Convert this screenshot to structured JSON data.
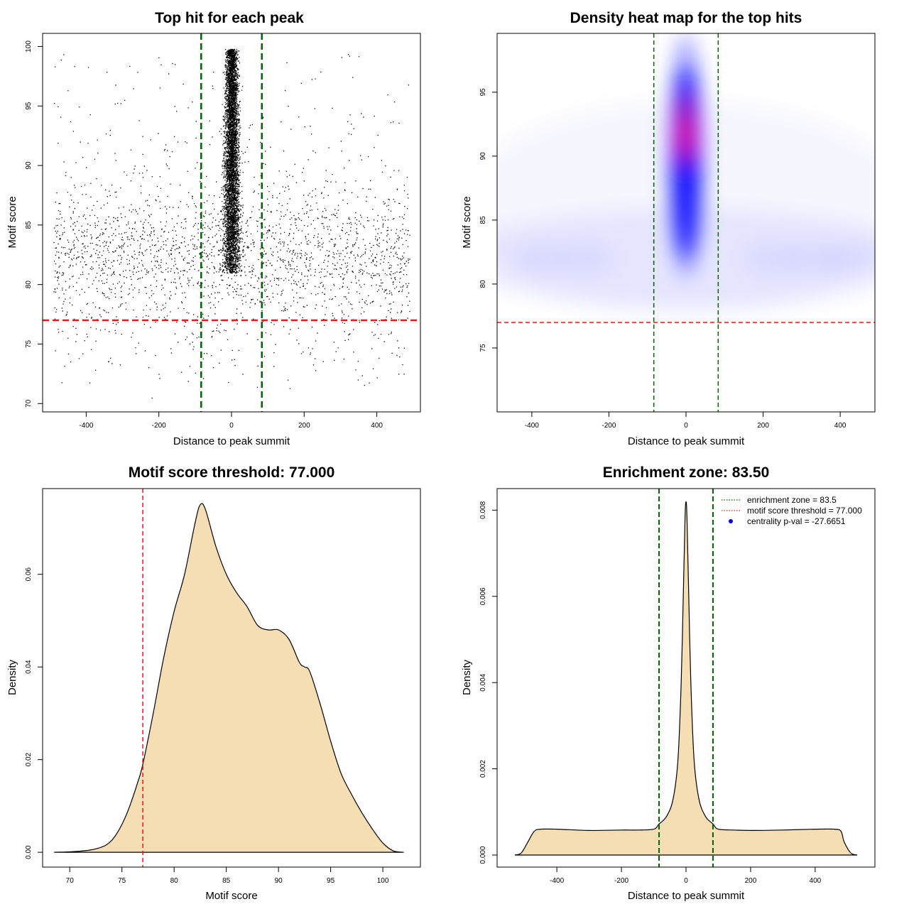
{
  "chart_data": [
    {
      "type": "scatter",
      "title": "Top hit for each peak",
      "xlabel": "Distance to peak summit",
      "ylabel": "Motif score",
      "xlim": [
        -520,
        520
      ],
      "ylim": [
        69.3,
        101.1
      ],
      "xticks": [
        -400,
        -200,
        0,
        200,
        400
      ],
      "yticks": [
        70,
        75,
        80,
        85,
        90,
        95,
        100
      ],
      "vlines": [
        -83.5,
        83.5
      ],
      "hline": 77,
      "central_cluster": {
        "x_center": 0,
        "x_sd": 12,
        "y_min": 81,
        "y_max": 99.8
      },
      "background": {
        "x_range": [
          -490,
          490
        ],
        "y_center": 82.5,
        "y_min": 73,
        "y_max": 99.5
      },
      "colors": {
        "points": "#000000",
        "vlines": "#006400",
        "hline": "#e41a1c"
      }
    },
    {
      "type": "heatmap",
      "title": "Density heat map for the top hits",
      "xlabel": "Distance to peak summit",
      "ylabel": "Motif score",
      "xlim": [
        -490,
        490
      ],
      "ylim": [
        70,
        99.6
      ],
      "xticks": [
        -400,
        -200,
        0,
        200,
        400
      ],
      "yticks": [
        75,
        80,
        85,
        90,
        95
      ],
      "vlines": [
        -83.5,
        83.5
      ],
      "hline": 77,
      "peak": {
        "x": 0,
        "y": 92
      },
      "colors": {
        "low": "#ffffff",
        "mid": "#0000ff",
        "high": "#ff0000",
        "vlines": "#006400",
        "hline": "#e41a1c"
      }
    },
    {
      "type": "area",
      "title": "Motif score threshold: 77.000",
      "xlabel": "Motif score",
      "ylabel": "Density",
      "xlim": [
        67.4,
        103.6
      ],
      "ylim": [
        -0.0032,
        0.0785
      ],
      "xticks": [
        70,
        75,
        80,
        85,
        90,
        95,
        100
      ],
      "yticks": [
        0.0,
        0.02,
        0.04,
        0.06
      ],
      "ytick_labels": [
        "0.00",
        "0.02",
        "0.04",
        "0.06"
      ],
      "vline": 77,
      "x": [
        68.5,
        70,
        72,
        73.5,
        74.5,
        75.5,
        76.5,
        77,
        78,
        79,
        80,
        81,
        82,
        82.5,
        83,
        84,
        85,
        86,
        87,
        88,
        89,
        90,
        91,
        92,
        92.5,
        93,
        94,
        95,
        96,
        97,
        98,
        99,
        100,
        101,
        102
      ],
      "values": [
        0,
        0.0001,
        0.0005,
        0.0016,
        0.004,
        0.0085,
        0.015,
        0.019,
        0.03,
        0.042,
        0.052,
        0.06,
        0.071,
        0.075,
        0.074,
        0.066,
        0.06,
        0.056,
        0.053,
        0.049,
        0.048,
        0.048,
        0.046,
        0.041,
        0.04,
        0.039,
        0.032,
        0.024,
        0.017,
        0.0125,
        0.0085,
        0.005,
        0.002,
        0.0003,
        0
      ],
      "colors": {
        "fill": "#f5deb3",
        "line": "#000000",
        "vline": "#e41a1c"
      }
    },
    {
      "type": "area",
      "title": "Enrichment zone: 83.50",
      "xlabel": "Distance to peak summit",
      "ylabel": "Density",
      "xlim": [
        -585,
        585
      ],
      "ylim": [
        -0.00028,
        0.0085
      ],
      "xticks": [
        -400,
        -200,
        0,
        200,
        400
      ],
      "yticks": [
        0,
        0.002,
        0.004,
        0.006,
        0.008
      ],
      "ytick_labels": [
        "0.000",
        "0.002",
        "0.004",
        "0.006",
        "0.008"
      ],
      "vlines": [
        -83.5,
        83.5
      ],
      "x": [
        -530,
        -510,
        -490,
        -470,
        -450,
        -400,
        -300,
        -200,
        -150,
        -100,
        -83.5,
        -60,
        -40,
        -25,
        -15,
        -8,
        -3,
        0,
        3,
        8,
        15,
        25,
        40,
        60,
        83.5,
        100,
        150,
        200,
        300,
        400,
        460,
        480,
        490,
        510,
        530
      ],
      "values": [
        0,
        5e-05,
        0.0003,
        0.00055,
        0.0006,
        0.0006,
        0.00057,
        0.00058,
        0.00058,
        0.0006,
        0.00072,
        0.0009,
        0.0013,
        0.0022,
        0.004,
        0.0062,
        0.0078,
        0.0082,
        0.0078,
        0.0062,
        0.004,
        0.0022,
        0.0013,
        0.0009,
        0.00072,
        0.0006,
        0.00058,
        0.00057,
        0.00058,
        0.0006,
        0.0006,
        0.00055,
        0.0003,
        5e-05,
        0
      ],
      "legend": [
        {
          "label": "enrichment zone = 83.5",
          "color": "#006400",
          "style": "dotted-line"
        },
        {
          "label": "motif score threshold = 77.000",
          "color": "#e41a1c",
          "style": "dotted-line"
        },
        {
          "label": "centrality p-val = -27.6651",
          "color": "#0000ff",
          "style": "point"
        }
      ],
      "legend_position": "top-right",
      "colors": {
        "fill": "#f5deb3",
        "line": "#000000",
        "vlines": "#006400"
      }
    }
  ]
}
